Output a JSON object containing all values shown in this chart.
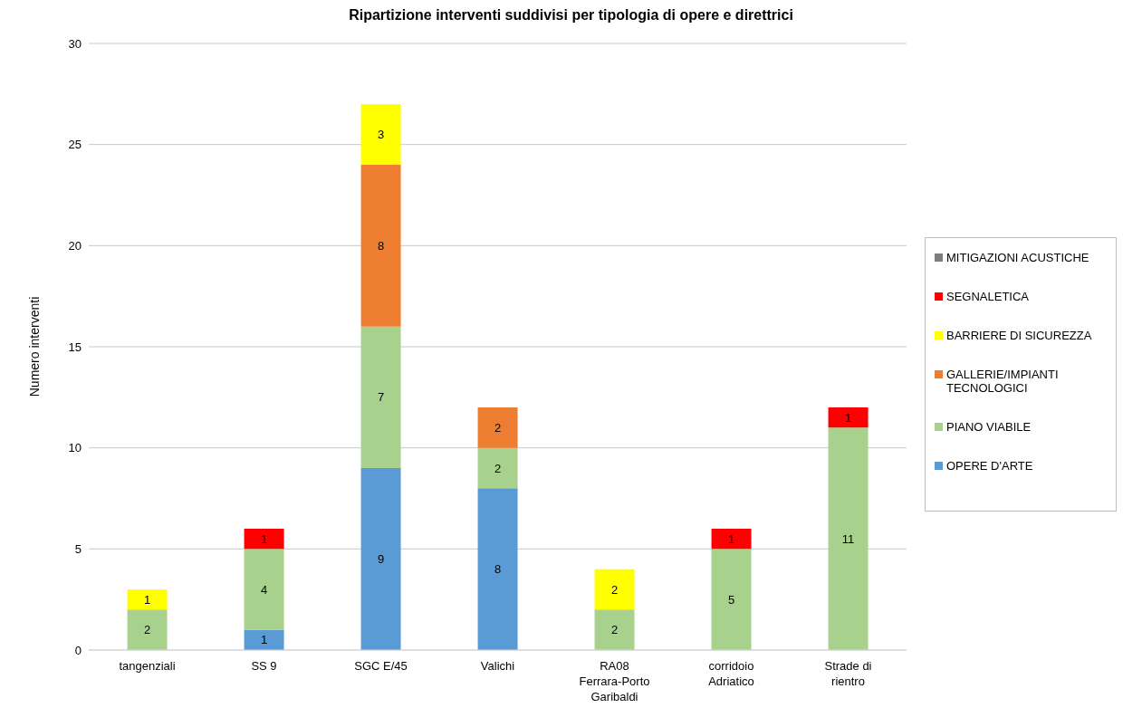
{
  "chart_data": {
    "type": "bar",
    "title": "Ripartizione interventi suddivisi per tipologia di opere e direttrici",
    "ylabel": "Numero interventi",
    "categories": [
      "tangenziali",
      "SS 9",
      "SGC E/45",
      "Valichi",
      "RA08 Ferrara-Porto Garibaldi",
      "corridoio Adriatico",
      "Strade di rientro"
    ],
    "stacked": true,
    "data_labels": true,
    "grid": "y",
    "legend": "right",
    "ylim": [
      0,
      30
    ],
    "yticks": [
      0,
      5,
      10,
      15,
      20,
      25,
      30
    ],
    "series": [
      {
        "name": "OPERE D'ARTE",
        "color": "#5b9bd5",
        "values": [
          null,
          1,
          9,
          8,
          null,
          null,
          null
        ]
      },
      {
        "name": "PIANO VIABILE",
        "color": "#a9d18e",
        "values": [
          2,
          4,
          7,
          2,
          2,
          5,
          11
        ]
      },
      {
        "name": "GALLERIE/IMPIANTI TECNOLOGICI",
        "color": "#ed7d31",
        "values": [
          null,
          null,
          8,
          2,
          null,
          null,
          null
        ]
      },
      {
        "name": "BARRIERE DI SICUREZZA",
        "color": "#ffff00",
        "values": [
          1,
          null,
          3,
          null,
          2,
          null,
          null
        ]
      },
      {
        "name": "SEGNALETICA",
        "color": "#ff0000",
        "values": [
          null,
          1,
          null,
          null,
          null,
          1,
          1
        ]
      },
      {
        "name": "MITIGAZIONI ACUSTICHE",
        "color": "#7f7f7f",
        "values": [
          null,
          null,
          null,
          null,
          null,
          null,
          null
        ]
      }
    ]
  }
}
